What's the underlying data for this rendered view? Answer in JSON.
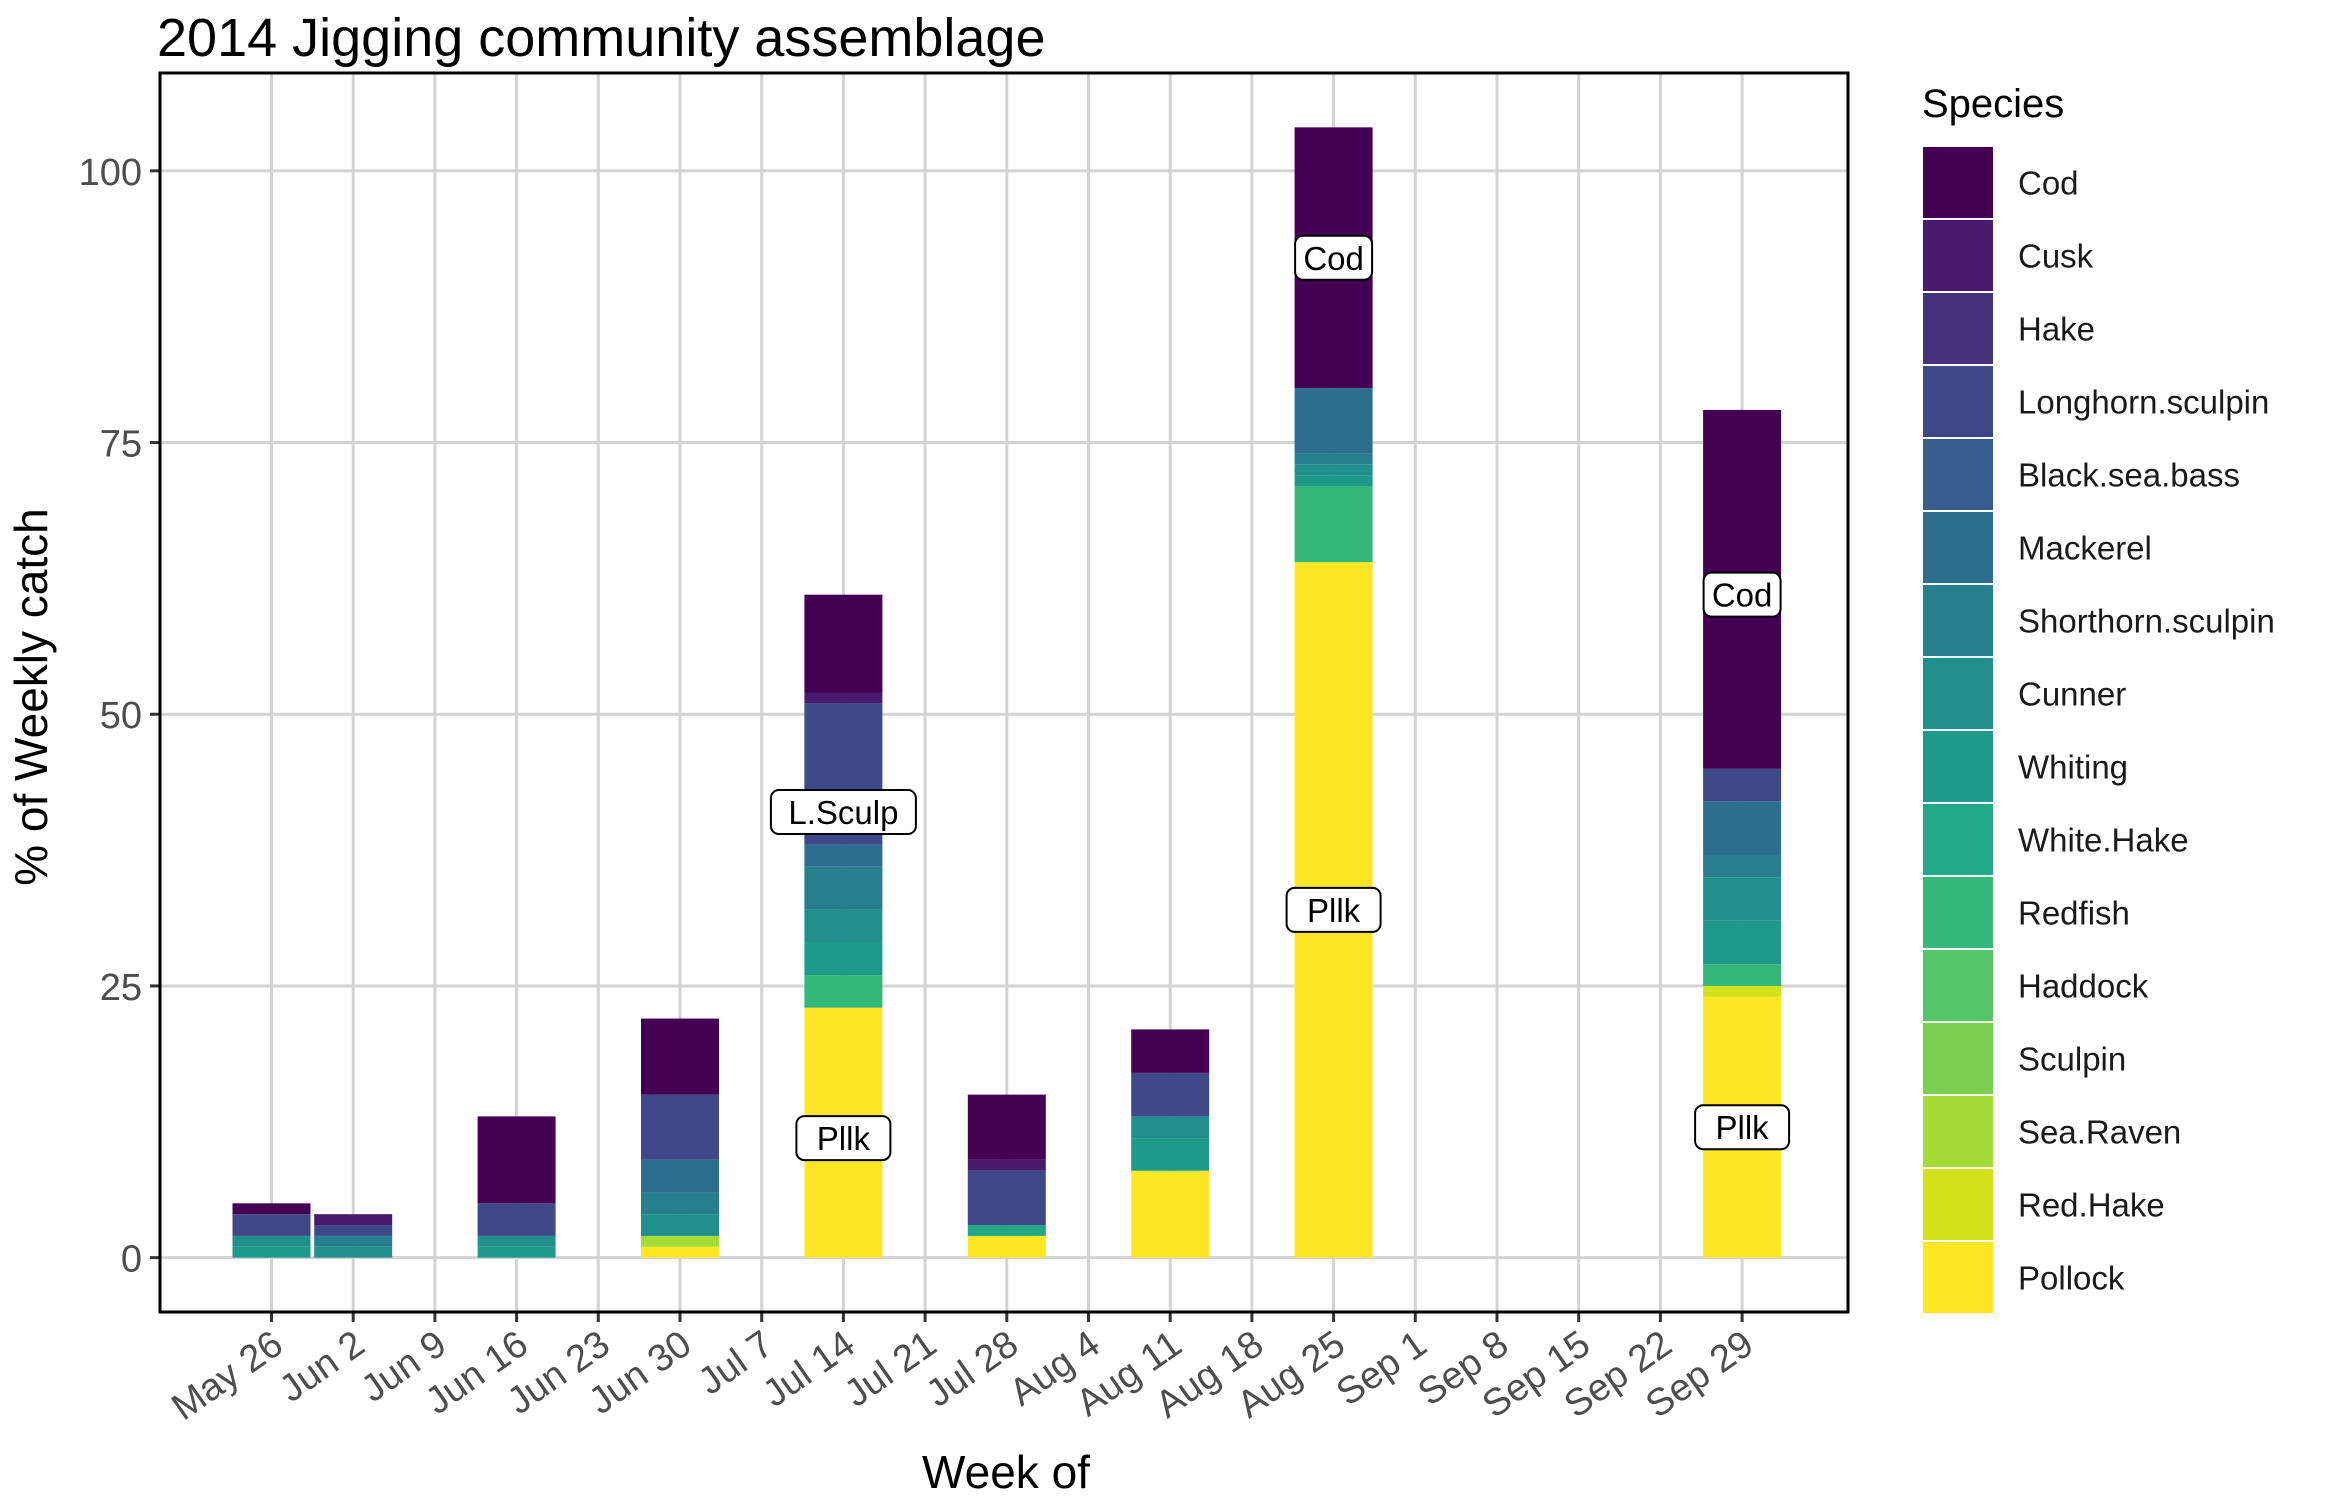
{
  "chart_data": {
    "type": "bar",
    "stacked": true,
    "title": "2014 Jigging community assemblage",
    "xlabel": "Week of",
    "ylabel": "% of Weekly catch",
    "ylim": [
      -5,
      109
    ],
    "yticks": [
      0,
      25,
      50,
      75,
      100
    ],
    "grid": true,
    "legend_position": "right",
    "legend_title": "Species",
    "categories": [
      "May 26",
      "Jun 2",
      "Jun 9",
      "Jun 16",
      "Jun 23",
      "Jun 30",
      "Jul 7",
      "Jul 14",
      "Jul 21",
      "Jul 28",
      "Aug 4",
      "Aug 11",
      "Aug 18",
      "Aug 25",
      "Sep 1",
      "Sep 8",
      "Sep 15",
      "Sep 22",
      "Sep 29"
    ],
    "series": [
      {
        "name": "Pollock",
        "color": "#FDE725",
        "values": [
          0,
          0,
          0,
          0,
          0,
          1,
          0,
          23,
          0,
          2,
          0,
          8,
          0,
          64,
          0,
          0,
          0,
          0,
          24
        ]
      },
      {
        "name": "Red.Hake",
        "color": "#D1E11C",
        "values": [
          0,
          0,
          0,
          0,
          0,
          0,
          0,
          0,
          0,
          0,
          0,
          0,
          0,
          0,
          0,
          0,
          0,
          0,
          1
        ]
      },
      {
        "name": "Sea.Raven",
        "color": "#A5DB36",
        "values": [
          0,
          0,
          0,
          0,
          0,
          1,
          0,
          0,
          0,
          0,
          0,
          0,
          0,
          0,
          0,
          0,
          0,
          0,
          0
        ]
      },
      {
        "name": "Sculpin",
        "color": "#7AD151",
        "values": [
          0,
          0,
          0,
          0,
          0,
          0,
          0,
          0,
          0,
          0,
          0,
          0,
          0,
          0,
          0,
          0,
          0,
          0,
          0
        ]
      },
      {
        "name": "Haddock",
        "color": "#54C568",
        "values": [
          0,
          0,
          0,
          0,
          0,
          0,
          0,
          0,
          0,
          0,
          0,
          0,
          0,
          0,
          0,
          0,
          0,
          0,
          0
        ]
      },
      {
        "name": "Redfish",
        "color": "#35B779",
        "values": [
          0,
          0,
          0,
          0,
          0,
          0,
          0,
          3,
          0,
          0,
          0,
          0,
          0,
          7,
          0,
          0,
          0,
          0,
          2
        ]
      },
      {
        "name": "White.Hake",
        "color": "#22A884",
        "values": [
          0,
          0,
          0,
          0,
          0,
          0,
          0,
          0,
          0,
          1,
          0,
          0,
          0,
          0,
          0,
          0,
          0,
          0,
          0
        ]
      },
      {
        "name": "Whiting",
        "color": "#1F998A",
        "values": [
          1,
          0,
          0,
          1,
          0,
          0,
          0,
          3,
          0,
          0,
          0,
          3,
          0,
          1,
          0,
          0,
          0,
          0,
          4
        ]
      },
      {
        "name": "Cunner",
        "color": "#21908C",
        "values": [
          1,
          1,
          0,
          1,
          0,
          2,
          0,
          3,
          0,
          0,
          0,
          2,
          0,
          1,
          0,
          0,
          0,
          0,
          4
        ]
      },
      {
        "name": "Shorthorn.sculpin",
        "color": "#277F8E",
        "values": [
          0,
          1,
          0,
          0,
          0,
          2,
          0,
          4,
          0,
          0,
          0,
          0,
          0,
          1,
          0,
          0,
          0,
          0,
          2
        ]
      },
      {
        "name": "Mackerel",
        "color": "#2E6E8E",
        "values": [
          0,
          0,
          0,
          0,
          0,
          3,
          0,
          2,
          0,
          0,
          0,
          0,
          0,
          6,
          0,
          0,
          0,
          0,
          5
        ]
      },
      {
        "name": "Black.sea.bass",
        "color": "#365D8D",
        "values": [
          0,
          0,
          0,
          0,
          0,
          0,
          0,
          0,
          0,
          0,
          0,
          0,
          0,
          0,
          0,
          0,
          0,
          0,
          0
        ]
      },
      {
        "name": "Longhorn.sculpin",
        "color": "#3F4889",
        "values": [
          2,
          1,
          0,
          3,
          0,
          6,
          0,
          13,
          0,
          5,
          0,
          4,
          0,
          0,
          0,
          0,
          0,
          0,
          3
        ]
      },
      {
        "name": "Hake",
        "color": "#46337E",
        "values": [
          0,
          0,
          0,
          0,
          0,
          0,
          0,
          0,
          0,
          0,
          0,
          0,
          0,
          0,
          0,
          0,
          0,
          0,
          0
        ]
      },
      {
        "name": "Cusk",
        "color": "#481B6D",
        "values": [
          0,
          1,
          0,
          0,
          0,
          0,
          0,
          1,
          0,
          1,
          0,
          0,
          0,
          0,
          0,
          0,
          0,
          0,
          0
        ]
      },
      {
        "name": "Cod",
        "color": "#440154",
        "values": [
          1,
          0,
          0,
          8,
          0,
          7,
          0,
          9,
          0,
          6,
          0,
          4,
          0,
          24,
          0,
          0,
          0,
          0,
          33
        ]
      }
    ],
    "legend_order": [
      "Cod",
      "Cusk",
      "Hake",
      "Longhorn.sculpin",
      "Black.sea.bass",
      "Mackerel",
      "Shorthorn.sculpin",
      "Cunner",
      "Whiting",
      "White.Hake",
      "Redfish",
      "Haddock",
      "Sculpin",
      "Sea.Raven",
      "Red.Hake",
      "Pollock"
    ],
    "annotations": [
      {
        "category": "Jul 14",
        "y": 11,
        "text": "Pllk"
      },
      {
        "category": "Jul 14",
        "y": 41,
        "text": "L.Sculp"
      },
      {
        "category": "Aug 25",
        "y": 32,
        "text": "Pllk"
      },
      {
        "category": "Aug 25",
        "y": 92,
        "text": "Cod"
      },
      {
        "category": "Sep 29",
        "y": 12,
        "text": "Pllk"
      },
      {
        "category": "Sep 29",
        "y": 61,
        "text": "Cod"
      }
    ]
  }
}
